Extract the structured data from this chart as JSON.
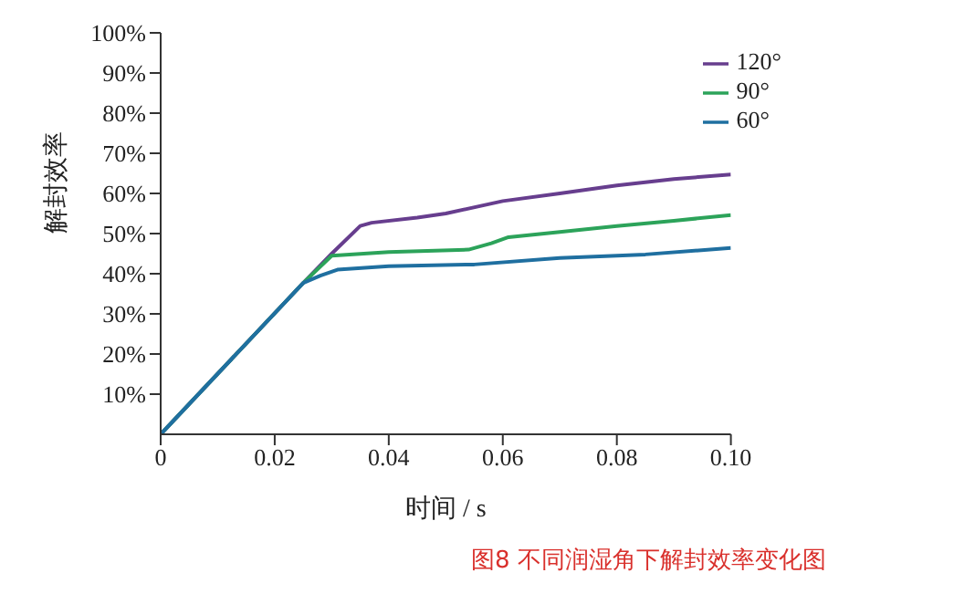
{
  "chart_data": {
    "type": "line",
    "xlabel": "时间 / s",
    "ylabel": "解封效率",
    "annotations": [
      "图8 不同润湿角下解封效率变化图"
    ],
    "xlim": [
      0,
      0.1
    ],
    "xticks": [
      0,
      0.02,
      0.04,
      0.06,
      0.08,
      {
        "value": 0.1,
        "label": "0.10"
      }
    ],
    "ylim": [
      0,
      100
    ],
    "yticks": [
      {
        "value": 10,
        "label": "10%"
      },
      {
        "value": 20,
        "label": "20%"
      },
      {
        "value": 30,
        "label": "30%"
      },
      {
        "value": 40,
        "label": "40%"
      },
      {
        "value": 50,
        "label": "50%"
      },
      {
        "value": 60,
        "label": "60%"
      },
      {
        "value": 70,
        "label": "70%"
      },
      {
        "value": 80,
        "label": "80%"
      },
      {
        "value": 90,
        "label": "90%"
      },
      {
        "value": 100,
        "label": "100%"
      }
    ],
    "grid": false,
    "legend": "top right",
    "marker": "none",
    "line_style": "solid",
    "series": [
      {
        "name": "120°",
        "color": "#673e8e",
        "x": [
          0,
          0.025,
          0.03,
          0.035,
          0.037,
          0.045,
          0.05,
          0.06,
          0.07,
          0.08,
          0.09,
          0.1
        ],
        "values": [
          0,
          37.7,
          45,
          51.9,
          52.7,
          54,
          55,
          58.1,
          60,
          62,
          63.6,
          64.7
        ]
      },
      {
        "name": "90°",
        "color": "#2ca35a",
        "x": [
          0,
          0.025,
          0.03,
          0.04,
          0.054,
          0.058,
          0.061,
          0.07,
          0.08,
          0.09,
          0.1
        ],
        "values": [
          0,
          37.7,
          44.5,
          45.4,
          46,
          47.6,
          49.1,
          50.4,
          51.9,
          53.2,
          54.6
        ]
      },
      {
        "name": "60°",
        "color": "#1f6fa0",
        "x": [
          0,
          0.025,
          0.028,
          0.031,
          0.04,
          0.055,
          0.07,
          0.085,
          0.1
        ],
        "values": [
          0,
          37.7,
          39.5,
          41,
          41.9,
          42.3,
          43.9,
          44.8,
          46.4
        ]
      }
    ]
  }
}
